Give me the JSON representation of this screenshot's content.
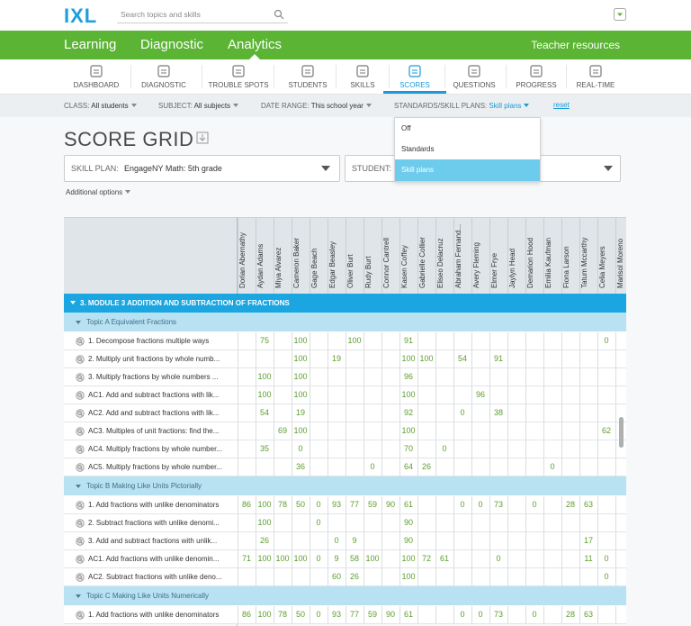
{
  "header": {
    "logo": "IXL",
    "search_placeholder": "Search topics and skills"
  },
  "nav": {
    "items": [
      "Learning",
      "Diagnostic",
      "Analytics"
    ],
    "right": "Teacher resources"
  },
  "subnav": [
    "DASHBOARD",
    "DIAGNOSTIC",
    "TROUBLE SPOTS",
    "STUDENTS",
    "SKILLS",
    "SCORES",
    "QUESTIONS",
    "PROGRESS",
    "REAL-TIME"
  ],
  "filters": [
    {
      "label": "CLASS:",
      "value": "All students"
    },
    {
      "label": "SUBJECT:",
      "value": "All subjects"
    },
    {
      "label": "DATE RANGE:",
      "value": "This school year"
    },
    {
      "label": "STANDARDS/SKILL PLANS:",
      "value": "Skill plans"
    }
  ],
  "reset": "reset",
  "dropdown": [
    "Off",
    "Standards",
    "Skill plans"
  ],
  "title": "SCORE GRID",
  "skill_plan": {
    "label": "SKILL PLAN:",
    "value": "EngageNY Math: 5th grade"
  },
  "student_label": "STUDENT:",
  "additional_options": "Additional options",
  "grid": {
    "students": [
      "Dorian Abernathy",
      "Aydan Adams",
      "Miya Alvarez",
      "Cameron Baker",
      "Gage Beach",
      "Edgar Beasley",
      "Oliver Burt",
      "Rudy Burt",
      "Connor Cantrell",
      "Kasen Coffey",
      "Gabrielle Collier",
      "Eliseo Delacruz",
      "Abraham Fernand...",
      "Avery Fleming",
      "Elmer Frye",
      "Jaylyn Head",
      "Demarion Hood",
      "Emilia Kaufman",
      "Fiona Larson",
      "Tatum Mccarthy",
      "Celia Meyers",
      "Marisol Moreno"
    ],
    "sections": [
      {
        "title": "3. MODULE 3 ADDITION AND SUBTRACTION OF FRACTIONS",
        "topics": [
          {
            "title": "Topic A Equivalent Fractions",
            "rows": [
              {
                "skill": "1. Decompose fractions multiple ways",
                "scores": [
                  null,
                  75,
                  null,
                  100,
                  null,
                  null,
                  100,
                  null,
                  null,
                  91,
                  null,
                  null,
                  null,
                  null,
                  null,
                  null,
                  null,
                  null,
                  null,
                  null,
                  0,
                  null
                ]
              },
              {
                "skill": "2. Multiply unit fractions by whole numb...",
                "scores": [
                  null,
                  null,
                  null,
                  100,
                  null,
                  19,
                  null,
                  null,
                  null,
                  100,
                  100,
                  null,
                  54,
                  null,
                  91,
                  null,
                  null,
                  null,
                  null,
                  null,
                  null,
                  null
                ]
              },
              {
                "skill": "3. Multiply fractions by whole numbers ...",
                "scores": [
                  null,
                  100,
                  null,
                  100,
                  null,
                  null,
                  null,
                  null,
                  null,
                  96,
                  null,
                  null,
                  null,
                  null,
                  null,
                  null,
                  null,
                  null,
                  null,
                  null,
                  null,
                  null
                ]
              },
              {
                "skill": "AC1. Add and subtract fractions with lik...",
                "scores": [
                  null,
                  100,
                  null,
                  100,
                  null,
                  null,
                  null,
                  null,
                  null,
                  100,
                  null,
                  null,
                  null,
                  96,
                  null,
                  null,
                  null,
                  null,
                  null,
                  null,
                  null,
                  null
                ]
              },
              {
                "skill": "AC2. Add and subtract fractions with lik...",
                "scores": [
                  null,
                  54,
                  null,
                  19,
                  null,
                  null,
                  null,
                  null,
                  null,
                  92,
                  null,
                  null,
                  0,
                  null,
                  38,
                  null,
                  null,
                  null,
                  null,
                  null,
                  null,
                  null
                ]
              },
              {
                "skill": "AC3. Multiples of unit fractions: find the...",
                "scores": [
                  null,
                  null,
                  69,
                  100,
                  null,
                  null,
                  null,
                  null,
                  null,
                  100,
                  null,
                  null,
                  null,
                  null,
                  null,
                  null,
                  null,
                  null,
                  null,
                  null,
                  62,
                  null
                ]
              },
              {
                "skill": "AC4. Multiply fractions by whole number...",
                "scores": [
                  null,
                  35,
                  null,
                  0,
                  null,
                  null,
                  null,
                  null,
                  null,
                  70,
                  null,
                  0,
                  null,
                  null,
                  null,
                  null,
                  null,
                  null,
                  null,
                  null,
                  null,
                  null
                ]
              },
              {
                "skill": "AC5. Multiply fractions by whole number...",
                "scores": [
                  null,
                  null,
                  null,
                  36,
                  null,
                  null,
                  null,
                  0,
                  null,
                  64,
                  26,
                  null,
                  null,
                  null,
                  null,
                  null,
                  null,
                  0,
                  null,
                  null,
                  null,
                  null
                ]
              }
            ]
          },
          {
            "title": "Topic B Making Like Units Pictorially",
            "rows": [
              {
                "skill": "1. Add fractions with unlike denominators",
                "scores": [
                  86,
                  100,
                  78,
                  50,
                  0,
                  93,
                  77,
                  59,
                  90,
                  61,
                  null,
                  null,
                  0,
                  0,
                  73,
                  null,
                  0,
                  null,
                  28,
                  63,
                  null,
                  null
                ]
              },
              {
                "skill": "2. Subtract fractions with unlike denomi...",
                "scores": [
                  null,
                  100,
                  null,
                  null,
                  0,
                  null,
                  null,
                  null,
                  null,
                  90,
                  null,
                  null,
                  null,
                  null,
                  null,
                  null,
                  null,
                  null,
                  null,
                  null,
                  null,
                  null
                ]
              },
              {
                "skill": "3. Add and subtract fractions with unlik...",
                "scores": [
                  null,
                  26,
                  null,
                  null,
                  null,
                  0,
                  9,
                  null,
                  null,
                  90,
                  null,
                  null,
                  null,
                  null,
                  null,
                  null,
                  null,
                  null,
                  null,
                  17,
                  null,
                  null
                ]
              },
              {
                "skill": "AC1. Add fractions with unlike denomin...",
                "scores": [
                  71,
                  100,
                  100,
                  100,
                  0,
                  9,
                  58,
                  100,
                  null,
                  100,
                  72,
                  61,
                  null,
                  null,
                  0,
                  null,
                  null,
                  null,
                  null,
                  11,
                  0,
                  null
                ]
              },
              {
                "skill": "AC2. Subtract fractions with unlike deno...",
                "scores": [
                  null,
                  null,
                  null,
                  null,
                  null,
                  60,
                  26,
                  null,
                  null,
                  100,
                  null,
                  null,
                  null,
                  null,
                  null,
                  null,
                  null,
                  null,
                  null,
                  null,
                  0,
                  null
                ]
              }
            ]
          },
          {
            "title": "Topic C Making Like Units Numerically",
            "rows": [
              {
                "skill": "1. Add fractions with unlike denominators",
                "scores": [
                  86,
                  100,
                  78,
                  50,
                  0,
                  93,
                  77,
                  59,
                  90,
                  61,
                  null,
                  null,
                  0,
                  0,
                  73,
                  null,
                  0,
                  null,
                  28,
                  63,
                  null,
                  null
                ]
              }
            ]
          }
        ]
      }
    ]
  }
}
